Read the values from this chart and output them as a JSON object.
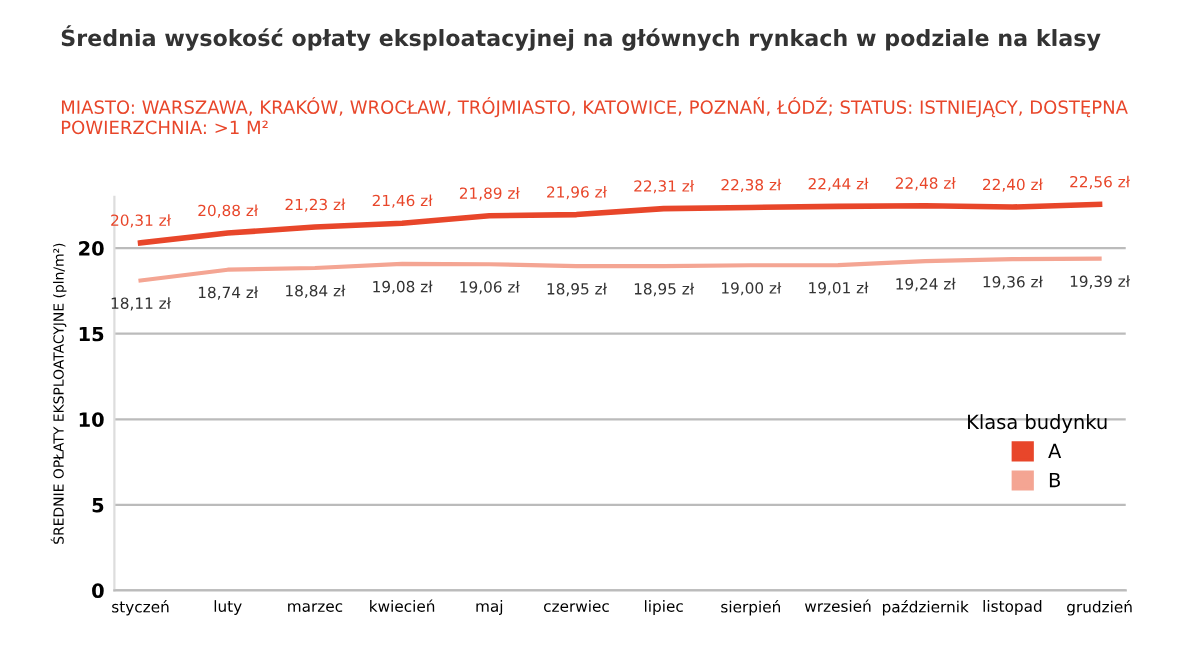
{
  "chart_data": {
    "type": "line",
    "title": "Średnia wysokość opłaty eksploatacyjnej na głównych rynkach w podziale na klasy",
    "subtitle": "MIASTO: WARSZAWA, KRAKÓW, WROCŁAW, TRÓJMIASTO, KATOWICE, POZNAŃ, ŁÓDŹ; STATUS: ISTNIEJĄCY, DOSTĘPNA POWIERZCHNIA: >1 M²",
    "ylabel": "ŚREDNIE OPŁATY EKSPLOATACYJNE (pln/m²)",
    "legend_title": "Klasa budynku",
    "categories": [
      "styczeń",
      "luty",
      "marzec",
      "kwiecień",
      "maj",
      "czerwiec",
      "lipiec",
      "sierpień",
      "wrzesień",
      "październik",
      "listopad",
      "grudzień"
    ],
    "series": [
      {
        "name": "A",
        "color": "#e8462a",
        "values": [
          20.31,
          20.88,
          21.23,
          21.46,
          21.89,
          21.96,
          22.31,
          22.38,
          22.44,
          22.48,
          22.4,
          22.56
        ],
        "value_labels": [
          "20,31 zł",
          "20,88 zł",
          "21,23 zł",
          "21,46 zł",
          "21,89 zł",
          "21,96 zł",
          "22,31 zł",
          "22,38 zł",
          "22,44 zł",
          "22,48 zł",
          "22,40 zł",
          "22,56 zł"
        ]
      },
      {
        "name": "B",
        "color": "#f4a593",
        "values": [
          18.11,
          18.74,
          18.84,
          19.08,
          19.06,
          18.95,
          18.95,
          19.0,
          19.01,
          19.24,
          19.36,
          19.39
        ],
        "value_labels": [
          "18,11 zł",
          "18,74 zł",
          "18,84 zł",
          "19,08 zł",
          "19,06 zł",
          "18,95 zł",
          "18,95 zł",
          "19,00 zł",
          "19,01 zł",
          "19,24 zł",
          "19,36 zł",
          "19,39 zł"
        ]
      }
    ],
    "ylim": [
      0,
      23
    ],
    "yticks": [
      0,
      5,
      10,
      15,
      20
    ],
    "grid": "y",
    "legend": "right",
    "marker": "none",
    "line_style": "solid"
  }
}
